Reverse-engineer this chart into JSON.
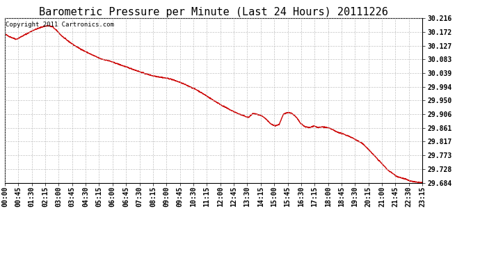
{
  "title": "Barometric Pressure per Minute (Last 24 Hours) 20111226",
  "copyright_text": "Copyright 2011 Cartronics.com",
  "line_color": "#cc0000",
  "background_color": "#ffffff",
  "plot_bg_color": "#ffffff",
  "grid_color": "#bbbbbb",
  "yticks": [
    29.684,
    29.728,
    29.773,
    29.817,
    29.861,
    29.906,
    29.95,
    29.994,
    30.039,
    30.083,
    30.127,
    30.172,
    30.216
  ],
  "ytick_labels": [
    "29.684",
    "29.728",
    "29.773",
    "29.817",
    "29.861",
    "29.906",
    "29.950",
    "29.994",
    "30.039",
    "30.083",
    "30.127",
    "30.172",
    "30.216"
  ],
  "ylim": [
    29.684,
    30.216
  ],
  "xtick_labels": [
    "00:00",
    "00:45",
    "01:30",
    "02:15",
    "03:00",
    "03:45",
    "04:30",
    "05:15",
    "06:00",
    "06:45",
    "07:30",
    "08:15",
    "09:00",
    "09:45",
    "10:30",
    "11:15",
    "12:00",
    "12:45",
    "13:30",
    "14:15",
    "15:00",
    "15:45",
    "16:30",
    "17:15",
    "18:00",
    "18:45",
    "19:30",
    "20:15",
    "21:00",
    "21:45",
    "22:30",
    "23:15"
  ],
  "title_fontsize": 11,
  "tick_fontsize": 7,
  "copyright_fontsize": 6.5,
  "line_width": 1.0,
  "waypoints": [
    [
      0,
      30.165
    ],
    [
      20,
      30.155
    ],
    [
      40,
      30.148
    ],
    [
      60,
      30.158
    ],
    [
      80,
      30.168
    ],
    [
      100,
      30.178
    ],
    [
      120,
      30.185
    ],
    [
      135,
      30.19
    ],
    [
      150,
      30.192
    ],
    [
      165,
      30.188
    ],
    [
      180,
      30.175
    ],
    [
      195,
      30.16
    ],
    [
      210,
      30.148
    ],
    [
      225,
      30.138
    ],
    [
      240,
      30.128
    ],
    [
      270,
      30.112
    ],
    [
      300,
      30.098
    ],
    [
      330,
      30.085
    ],
    [
      360,
      30.078
    ],
    [
      390,
      30.068
    ],
    [
      420,
      30.058
    ],
    [
      450,
      30.048
    ],
    [
      480,
      30.038
    ],
    [
      510,
      30.03
    ],
    [
      540,
      30.025
    ],
    [
      570,
      30.02
    ],
    [
      600,
      30.01
    ],
    [
      630,
      29.998
    ],
    [
      660,
      29.985
    ],
    [
      690,
      29.968
    ],
    [
      720,
      29.95
    ],
    [
      750,
      29.933
    ],
    [
      780,
      29.918
    ],
    [
      810,
      29.905
    ],
    [
      840,
      29.895
    ],
    [
      855,
      29.908
    ],
    [
      870,
      29.905
    ],
    [
      885,
      29.9
    ],
    [
      900,
      29.89
    ],
    [
      915,
      29.875
    ],
    [
      930,
      29.868
    ],
    [
      945,
      29.872
    ],
    [
      960,
      29.905
    ],
    [
      975,
      29.912
    ],
    [
      990,
      29.908
    ],
    [
      1005,
      29.895
    ],
    [
      1020,
      29.875
    ],
    [
      1035,
      29.865
    ],
    [
      1050,
      29.862
    ],
    [
      1065,
      29.868
    ],
    [
      1080,
      29.862
    ],
    [
      1095,
      29.865
    ],
    [
      1110,
      29.862
    ],
    [
      1125,
      29.858
    ],
    [
      1140,
      29.85
    ],
    [
      1155,
      29.845
    ],
    [
      1170,
      29.84
    ],
    [
      1185,
      29.835
    ],
    [
      1200,
      29.828
    ],
    [
      1215,
      29.82
    ],
    [
      1230,
      29.812
    ],
    [
      1245,
      29.8
    ],
    [
      1260,
      29.785
    ],
    [
      1275,
      29.77
    ],
    [
      1290,
      29.755
    ],
    [
      1305,
      29.74
    ],
    [
      1320,
      29.725
    ],
    [
      1335,
      29.715
    ],
    [
      1350,
      29.705
    ],
    [
      1365,
      29.7
    ],
    [
      1380,
      29.696
    ],
    [
      1395,
      29.69
    ],
    [
      1415,
      29.686
    ],
    [
      1439,
      29.684
    ]
  ]
}
